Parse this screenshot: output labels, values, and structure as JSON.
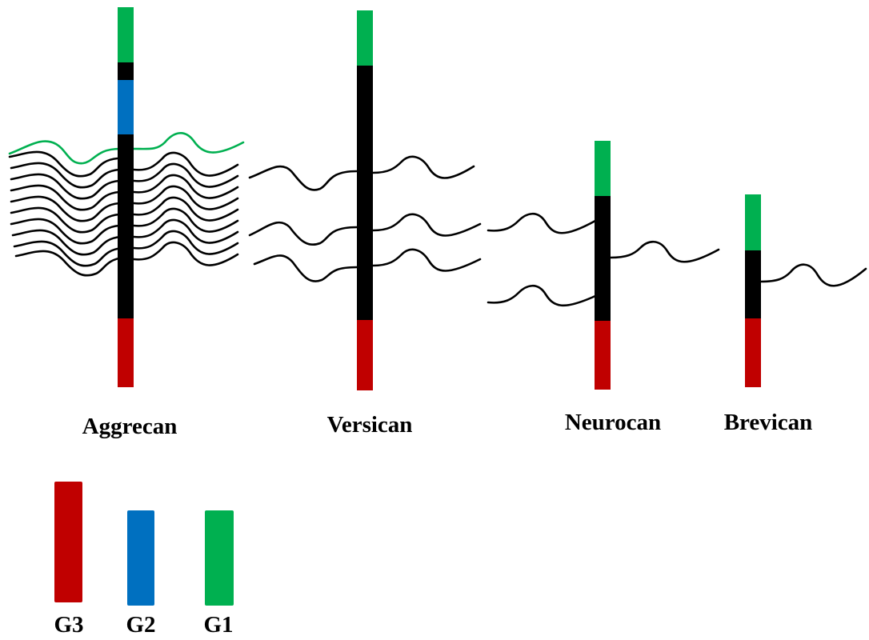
{
  "colors": {
    "g1": "#00b050",
    "g2": "#0070c0",
    "g3": "#c00000",
    "core": "#000000",
    "highlight_chain": "#00b050"
  },
  "molecules": [
    {
      "id": "aggrecan",
      "label": "Aggrecan",
      "domains": [
        "G1",
        "G2",
        "G3"
      ]
    },
    {
      "id": "versican",
      "label": "Versican",
      "domains": [
        "G1",
        "G3"
      ]
    },
    {
      "id": "neurocan",
      "label": "Neurocan",
      "domains": [
        "G1",
        "G3"
      ]
    },
    {
      "id": "brevican",
      "label": "Brevican",
      "domains": [
        "G1",
        "G3"
      ]
    }
  ],
  "legend": [
    {
      "id": "g3",
      "label": "G3"
    },
    {
      "id": "g2",
      "label": "G2"
    },
    {
      "id": "g1",
      "label": "G1"
    }
  ]
}
